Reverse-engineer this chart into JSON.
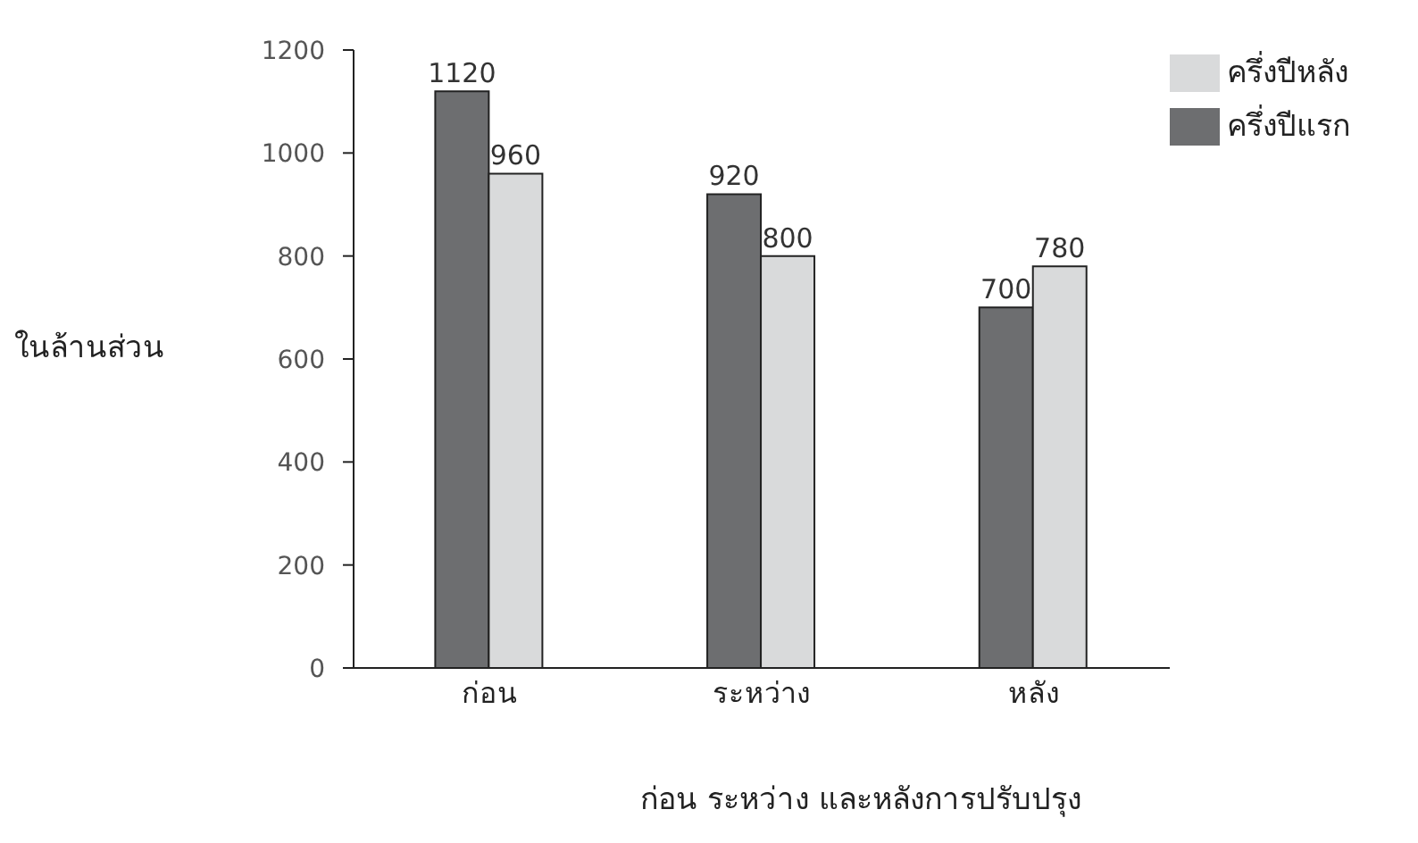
{
  "chart_data": {
    "type": "bar",
    "xlabel": "ก่อน ระหว่าง และหลังการปรับปรุง",
    "ylabel": "ในล้านส่วน",
    "categories": [
      "ก่อน",
      "ระหว่าง",
      "หลัง"
    ],
    "series": [
      {
        "name": "ครึ่งปีแรก",
        "color": "#6d6e70",
        "values": [
          1120,
          920,
          700
        ]
      },
      {
        "name": "ครึ่งปีหลัง",
        "color": "#d9dadb",
        "values": [
          960,
          800,
          780
        ]
      }
    ],
    "ylim": [
      0,
      1200
    ],
    "yticks": [
      0,
      200,
      400,
      600,
      800,
      1000,
      1200
    ],
    "grid": false,
    "legend": "top right",
    "data_labels": true
  }
}
